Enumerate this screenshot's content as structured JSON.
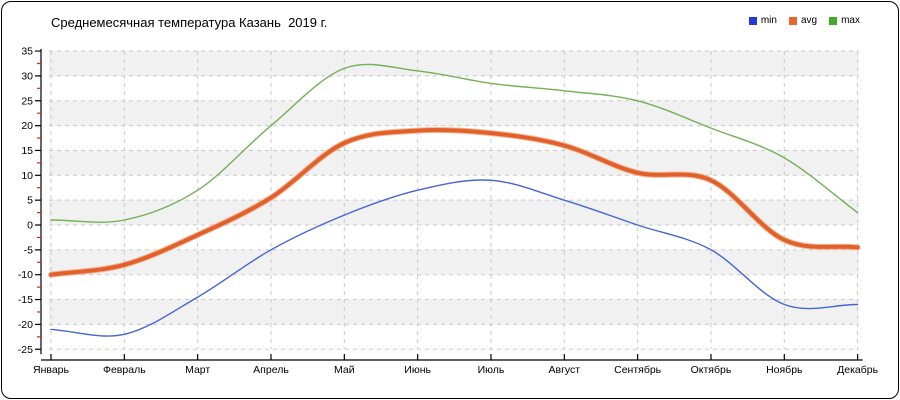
{
  "title": "Среднемесячная температура Казань  2019 г.",
  "legend": {
    "position": "top-right",
    "items": [
      {
        "label": "min",
        "color": "#2339DC"
      },
      {
        "label": "avg",
        "color": "#E8662B"
      },
      {
        "label": "max",
        "color": "#3FAD2B"
      }
    ]
  },
  "chart_data": {
    "type": "line",
    "title": "Среднемесячная температура Казань  2019 г.",
    "categories": [
      "Январь",
      "Февраль",
      "Март",
      "Апрель",
      "Май",
      "Июнь",
      "Июль",
      "Август",
      "Сентябрь",
      "Октябрь",
      "Ноябрь",
      "Декабрь"
    ],
    "series": [
      {
        "name": "max",
        "color": "#72B155",
        "width": 1.4,
        "values": [
          1,
          1,
          7,
          20,
          31.5,
          31,
          28.5,
          27,
          25,
          19.5,
          13.5,
          2.5
        ]
      },
      {
        "name": "avg",
        "color": "#E2612B",
        "halo": "#F2A47E",
        "width": 4,
        "values": [
          -10,
          -8,
          -2,
          5.5,
          16.5,
          19,
          18.5,
          16,
          10.5,
          9,
          -3,
          -4.5
        ]
      },
      {
        "name": "min",
        "color": "#4465D6",
        "width": 1.4,
        "values": [
          -21,
          -22,
          -14.5,
          -5,
          2,
          7,
          9,
          5,
          0,
          -5,
          -16,
          -16
        ]
      }
    ],
    "ylim": [
      -25,
      35
    ],
    "ytick_step": 5,
    "yminor_step": 2.5,
    "xlabel": "",
    "ylabel": "",
    "smoothing": "spline",
    "grid": {
      "horizontal_dashed": true,
      "vertical_dashed": true,
      "alternating_bands": true,
      "band_color": "#F1F1F1",
      "line_color": "#C9C9C9",
      "axis_color": "#000000",
      "minor_tick_color": "#D42A00"
    },
    "legend_position": "top-right"
  }
}
